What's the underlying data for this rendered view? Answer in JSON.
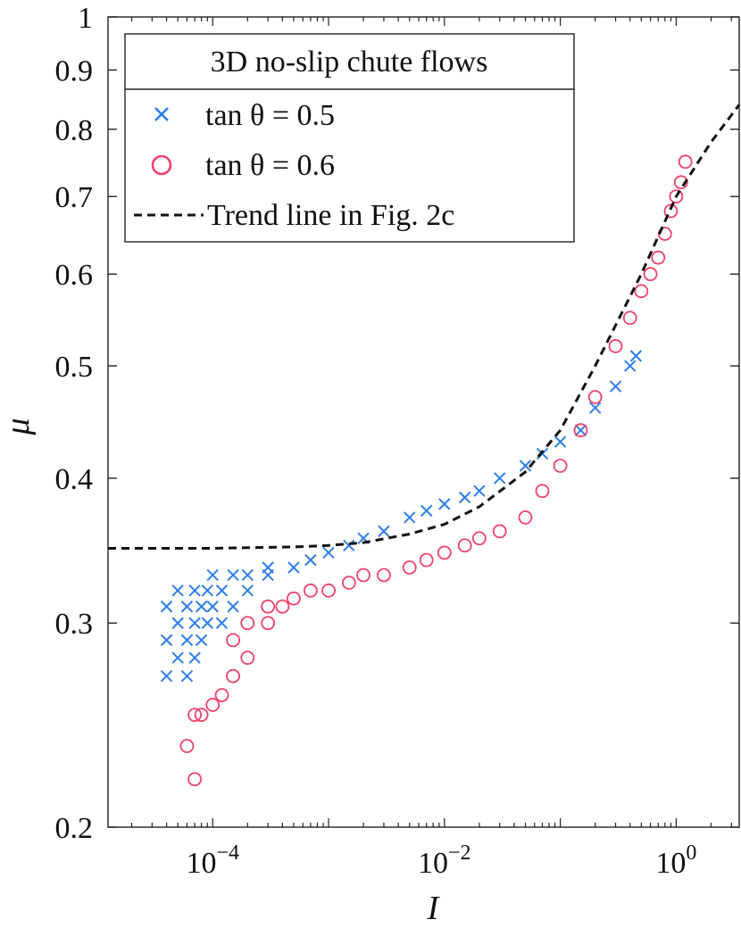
{
  "chart_data": {
    "type": "scatter",
    "xscale": "log",
    "yscale": "log",
    "xlabel": "I",
    "ylabel": "μ",
    "xlim": [
      1.25e-05,
      3.5
    ],
    "ylim": [
      0.2,
      1.0
    ],
    "xticks": [
      {
        "value": 0.0001,
        "base": "10",
        "exp": "−4"
      },
      {
        "value": 0.01,
        "base": "10",
        "exp": "−2"
      },
      {
        "value": 1,
        "base": "10",
        "exp": "0"
      }
    ],
    "yticks": [
      {
        "value": 0.2,
        "label": "0.2"
      },
      {
        "value": 0.3,
        "label": "0.3"
      },
      {
        "value": 0.4,
        "label": "0.4"
      },
      {
        "value": 0.5,
        "label": "0.5"
      },
      {
        "value": 0.6,
        "label": "0.6"
      },
      {
        "value": 0.7,
        "label": "0.7"
      },
      {
        "value": 0.8,
        "label": "0.8"
      },
      {
        "value": 0.9,
        "label": "0.9"
      },
      {
        "value": 1.0,
        "label": "1"
      }
    ],
    "legend": {
      "title": "3D no-slip chute flows",
      "placement": "top-left",
      "entries": [
        {
          "label": "tan θ = 0.5",
          "marker": "x",
          "color": "#2f7fe8"
        },
        {
          "label": "tan θ = 0.6",
          "marker": "o",
          "color": "#f0426a"
        },
        {
          "label": "Trend line in Fig. 2c",
          "marker": "dashed-line",
          "color": "#111111"
        }
      ]
    },
    "series": [
      {
        "name": "tan θ = 0.5",
        "marker": "x",
        "color": "#2f7fe8",
        "points": [
          [
            4e-05,
            0.27
          ],
          [
            4e-05,
            0.29
          ],
          [
            4e-05,
            0.31
          ],
          [
            5e-05,
            0.28
          ],
          [
            5e-05,
            0.3
          ],
          [
            5e-05,
            0.32
          ],
          [
            6e-05,
            0.27
          ],
          [
            6e-05,
            0.29
          ],
          [
            6e-05,
            0.31
          ],
          [
            7e-05,
            0.28
          ],
          [
            7e-05,
            0.3
          ],
          [
            7e-05,
            0.32
          ],
          [
            8e-05,
            0.29
          ],
          [
            8e-05,
            0.31
          ],
          [
            9e-05,
            0.3
          ],
          [
            9e-05,
            0.32
          ],
          [
            0.0001,
            0.31
          ],
          [
            0.0001,
            0.33
          ],
          [
            0.00012,
            0.3
          ],
          [
            0.00012,
            0.32
          ],
          [
            0.00015,
            0.31
          ],
          [
            0.00015,
            0.33
          ],
          [
            0.0002,
            0.32
          ],
          [
            0.0002,
            0.33
          ],
          [
            0.0003,
            0.33
          ],
          [
            0.0003,
            0.335
          ],
          [
            0.0005,
            0.335
          ],
          [
            0.0007,
            0.34
          ],
          [
            0.001,
            0.345
          ],
          [
            0.0015,
            0.35
          ],
          [
            0.002,
            0.355
          ],
          [
            0.003,
            0.36
          ],
          [
            0.005,
            0.37
          ],
          [
            0.007,
            0.375
          ],
          [
            0.01,
            0.38
          ],
          [
            0.015,
            0.385
          ],
          [
            0.02,
            0.39
          ],
          [
            0.03,
            0.4
          ],
          [
            0.05,
            0.41
          ],
          [
            0.07,
            0.42
          ],
          [
            0.1,
            0.43
          ],
          [
            0.15,
            0.44
          ],
          [
            0.2,
            0.46
          ],
          [
            0.3,
            0.48
          ],
          [
            0.4,
            0.5
          ],
          [
            0.45,
            0.51
          ]
        ]
      },
      {
        "name": "tan θ = 0.6",
        "marker": "o",
        "color": "#f0426a",
        "points": [
          [
            7e-05,
            0.22
          ],
          [
            6e-05,
            0.235
          ],
          [
            7e-05,
            0.25
          ],
          [
            8e-05,
            0.25
          ],
          [
            0.0001,
            0.255
          ],
          [
            0.00012,
            0.26
          ],
          [
            0.00015,
            0.27
          ],
          [
            0.0002,
            0.28
          ],
          [
            0.00015,
            0.29
          ],
          [
            0.0002,
            0.3
          ],
          [
            0.0003,
            0.3
          ],
          [
            0.0003,
            0.31
          ],
          [
            0.0004,
            0.31
          ],
          [
            0.0005,
            0.315
          ],
          [
            0.0007,
            0.32
          ],
          [
            0.001,
            0.32
          ],
          [
            0.0015,
            0.325
          ],
          [
            0.002,
            0.33
          ],
          [
            0.003,
            0.33
          ],
          [
            0.005,
            0.335
          ],
          [
            0.007,
            0.34
          ],
          [
            0.01,
            0.345
          ],
          [
            0.015,
            0.35
          ],
          [
            0.02,
            0.355
          ],
          [
            0.03,
            0.36
          ],
          [
            0.05,
            0.37
          ],
          [
            0.07,
            0.39
          ],
          [
            0.1,
            0.41
          ],
          [
            0.15,
            0.44
          ],
          [
            0.2,
            0.47
          ],
          [
            0.3,
            0.52
          ],
          [
            0.4,
            0.55
          ],
          [
            0.5,
            0.58
          ],
          [
            0.6,
            0.6
          ],
          [
            0.7,
            0.62
          ],
          [
            0.8,
            0.65
          ],
          [
            0.9,
            0.68
          ],
          [
            1.0,
            0.7
          ],
          [
            1.1,
            0.72
          ],
          [
            1.2,
            0.75
          ]
        ]
      },
      {
        "name": "Trend line in Fig. 2c",
        "marker": "dashed-line",
        "color": "#111111",
        "points": [
          [
            1.25e-05,
            0.348
          ],
          [
            0.0001,
            0.348
          ],
          [
            0.0005,
            0.349
          ],
          [
            0.001,
            0.35
          ],
          [
            0.002,
            0.352
          ],
          [
            0.005,
            0.358
          ],
          [
            0.01,
            0.365
          ],
          [
            0.02,
            0.378
          ],
          [
            0.05,
            0.405
          ],
          [
            0.1,
            0.44
          ],
          [
            0.2,
            0.5
          ],
          [
            0.5,
            0.6
          ],
          [
            1.0,
            0.7
          ],
          [
            2.0,
            0.78
          ],
          [
            3.5,
            0.84
          ]
        ]
      }
    ]
  }
}
